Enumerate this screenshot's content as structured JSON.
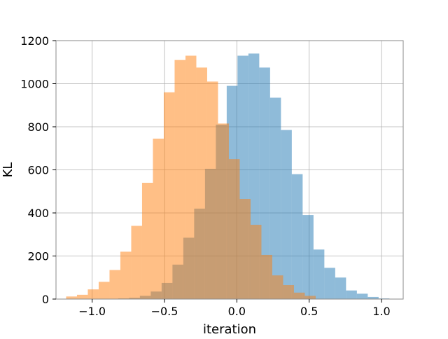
{
  "chart_data": {
    "type": "histogram",
    "xlabel": "iteration",
    "ylabel": "KL",
    "xlim": [
      -1.25,
      1.15
    ],
    "ylim": [
      0,
      1200
    ],
    "grid": true,
    "x_ticks": [
      -1.0,
      -0.5,
      0.0,
      0.5,
      1.0
    ],
    "x_tick_labels": [
      "−1.0",
      "−0.5",
      "0.0",
      "0.5",
      "1.0"
    ],
    "y_ticks": [
      0,
      200,
      400,
      600,
      800,
      1000,
      1200
    ],
    "y_tick_labels": [
      "0",
      "200",
      "400",
      "600",
      "800",
      "1000",
      "1200"
    ],
    "series": [
      {
        "color": "#1f77b4",
        "alpha": 0.5,
        "bin_edges": [
          -0.82,
          -0.745,
          -0.67,
          -0.595,
          -0.52,
          -0.445,
          -0.37,
          -0.295,
          -0.22,
          -0.145,
          -0.07,
          0.005,
          0.08,
          0.155,
          0.23,
          0.305,
          0.38,
          0.455,
          0.53,
          0.605,
          0.68,
          0.755,
          0.83,
          0.905,
          0.98,
          1.055
        ],
        "counts": [
          3,
          6,
          15,
          35,
          75,
          160,
          285,
          420,
          605,
          810,
          990,
          1130,
          1140,
          1075,
          935,
          785,
          580,
          390,
          230,
          145,
          100,
          40,
          25,
          10,
          3
        ]
      },
      {
        "color": "#ff7f0e",
        "alpha": 0.5,
        "bin_edges": [
          -1.18,
          -1.105,
          -1.03,
          -0.955,
          -0.88,
          -0.805,
          -0.73,
          -0.655,
          -0.58,
          -0.505,
          -0.43,
          -0.355,
          -0.28,
          -0.205,
          -0.13,
          -0.055,
          0.02,
          0.095,
          0.17,
          0.245,
          0.32,
          0.395,
          0.47,
          0.545
        ],
        "counts": [
          12,
          20,
          45,
          80,
          135,
          220,
          340,
          540,
          745,
          960,
          1110,
          1130,
          1075,
          1010,
          815,
          650,
          465,
          345,
          205,
          110,
          65,
          30,
          15
        ]
      }
    ]
  }
}
